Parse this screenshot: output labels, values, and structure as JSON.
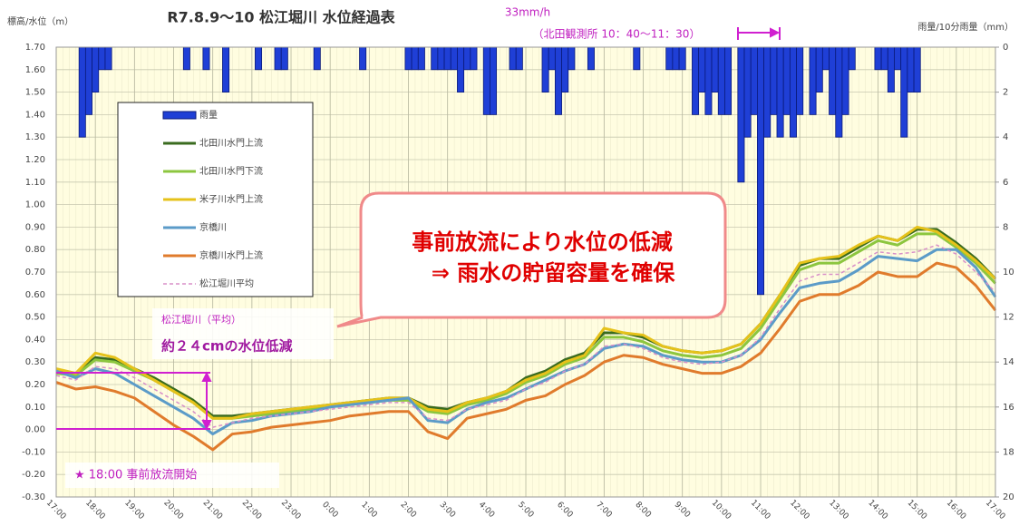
{
  "chart_data": {
    "type": "bar_line",
    "title": "R7.8.9～10 松江堀川 水位経過表",
    "y_label": "標高/水位（m）",
    "y2_label": "雨量/10分雨量（mm）",
    "annotations": {
      "rain_peak": "33mm/h",
      "rain_period": "（北田観測所 10：40～11：30）",
      "callout_line1": "事前放流により水位の低減",
      "callout_line2": "⇒ 雨水の貯留容量を確保",
      "avg_label": "松江堀川（平均）",
      "reduction": "約２４cmの水位低減",
      "start": "★ 18:00 事前放流開始"
    },
    "xlim": [
      0,
      1440
    ],
    "xticks": [
      {
        "value": 0,
        "label": "17:00"
      },
      {
        "value": 60,
        "label": "18:00"
      },
      {
        "value": 120,
        "label": "19:00"
      },
      {
        "value": 180,
        "label": "20:00"
      },
      {
        "value": 240,
        "label": "21:00"
      },
      {
        "value": 300,
        "label": "22:00"
      },
      {
        "value": 360,
        "label": "23:00"
      },
      {
        "value": 420,
        "label": "0:00"
      },
      {
        "value": 480,
        "label": "1:00"
      },
      {
        "value": 540,
        "label": "2:00"
      },
      {
        "value": 600,
        "label": "3:00"
      },
      {
        "value": 660,
        "label": "4:00"
      },
      {
        "value": 720,
        "label": "5:00"
      },
      {
        "value": 780,
        "label": "6:00"
      },
      {
        "value": 840,
        "label": "7:00"
      },
      {
        "value": 900,
        "label": "8:00"
      },
      {
        "value": 960,
        "label": "9:00"
      },
      {
        "value": 1020,
        "label": "10:00"
      },
      {
        "value": 1080,
        "label": "11:00"
      },
      {
        "value": 1140,
        "label": "12:00"
      },
      {
        "value": 1200,
        "label": "13:00"
      },
      {
        "value": 1260,
        "label": "14:00"
      },
      {
        "value": 1320,
        "label": "15:00"
      },
      {
        "value": 1380,
        "label": "16:00"
      },
      {
        "value": 1440,
        "label": "17:00"
      }
    ],
    "ylim": [
      -0.3,
      1.7
    ],
    "yticks": [
      {
        "value": -0.3,
        "label": "-0.30"
      },
      {
        "value": -0.2,
        "label": "-0.20"
      },
      {
        "value": -0.1,
        "label": "-0.10"
      },
      {
        "value": 0,
        "label": "0.00"
      },
      {
        "value": 0.1,
        "label": "0.10"
      },
      {
        "value": 0.2,
        "label": "0.20"
      },
      {
        "value": 0.3,
        "label": "0.30"
      },
      {
        "value": 0.4,
        "label": "0.40"
      },
      {
        "value": 0.5,
        "label": "0.50"
      },
      {
        "value": 0.6,
        "label": "0.60"
      },
      {
        "value": 0.7,
        "label": "0.70"
      },
      {
        "value": 0.8,
        "label": "0.80"
      },
      {
        "value": 0.9,
        "label": "0.90"
      },
      {
        "value": 1.0,
        "label": "1.00"
      },
      {
        "value": 1.1,
        "label": "1.10"
      },
      {
        "value": 1.2,
        "label": "1.20"
      },
      {
        "value": 1.3,
        "label": "1.30"
      },
      {
        "value": 1.4,
        "label": "1.40"
      },
      {
        "value": 1.5,
        "label": "1.50"
      },
      {
        "value": 1.6,
        "label": "1.60"
      },
      {
        "value": 1.7,
        "label": "1.70"
      }
    ],
    "y2lim": [
      20,
      0
    ],
    "y2ticks": [
      0,
      2,
      4,
      6,
      8,
      10,
      12,
      14,
      16,
      18,
      20
    ],
    "grid": true,
    "x": [
      0,
      30,
      60,
      90,
      120,
      150,
      180,
      210,
      240,
      270,
      300,
      330,
      360,
      390,
      420,
      450,
      480,
      510,
      540,
      570,
      600,
      630,
      660,
      690,
      720,
      750,
      780,
      810,
      840,
      870,
      900,
      930,
      960,
      990,
      1020,
      1050,
      1080,
      1110,
      1140,
      1170,
      1200,
      1230,
      1260,
      1290,
      1320,
      1350,
      1380,
      1410,
      1440
    ],
    "series": [
      {
        "name": "雨量",
        "type": "bar",
        "axis": "y2",
        "color": "#1f3fd6",
        "x": [
          40,
          50,
          60,
          70,
          80,
          200,
          230,
          260,
          310,
          340,
          350,
          400,
          470,
          540,
          550,
          560,
          580,
          590,
          600,
          610,
          620,
          630,
          640,
          660,
          670,
          700,
          710,
          750,
          760,
          770,
          780,
          790,
          820,
          890,
          940,
          950,
          960,
          980,
          990,
          1000,
          1010,
          1020,
          1030,
          1050,
          1060,
          1070,
          1080,
          1090,
          1100,
          1110,
          1120,
          1130,
          1140,
          1160,
          1170,
          1180,
          1190,
          1200,
          1210,
          1220,
          1260,
          1270,
          1280,
          1290,
          1300,
          1310,
          1320
        ],
        "values": [
          4,
          3,
          2,
          1,
          1,
          1,
          1,
          2,
          1,
          1,
          1,
          1,
          1,
          1,
          1,
          1,
          1,
          1,
          1,
          1,
          2,
          1,
          1,
          3,
          3,
          1,
          1,
          2,
          1,
          3,
          2,
          1,
          1,
          1,
          1,
          1,
          1,
          3,
          2,
          3,
          2,
          3,
          3,
          6,
          4,
          3,
          11,
          4,
          3,
          4,
          3,
          4,
          3,
          3,
          2,
          1,
          3,
          4,
          3,
          1,
          1,
          1,
          2,
          1,
          4,
          2,
          2
        ]
      },
      {
        "name": "北田川水門上流",
        "type": "line",
        "color": "#3a6b1f",
        "values": [
          0.26,
          0.25,
          0.32,
          0.31,
          0.27,
          0.23,
          0.18,
          0.13,
          0.06,
          0.06,
          0.07,
          0.08,
          0.09,
          0.1,
          0.11,
          0.12,
          0.13,
          0.14,
          0.14,
          0.1,
          0.09,
          0.12,
          0.14,
          0.17,
          0.23,
          0.26,
          0.31,
          0.34,
          0.43,
          0.43,
          0.41,
          0.37,
          0.35,
          0.34,
          0.35,
          0.38,
          0.47,
          0.6,
          0.73,
          0.76,
          0.76,
          0.81,
          0.86,
          0.84,
          0.89,
          0.89,
          0.83,
          0.76,
          0.67
        ]
      },
      {
        "name": "北田川水門下流",
        "type": "line",
        "color": "#8cc63f",
        "values": [
          0.25,
          0.24,
          0.31,
          0.3,
          0.26,
          0.22,
          0.17,
          0.12,
          0.05,
          0.05,
          0.06,
          0.07,
          0.08,
          0.09,
          0.1,
          0.11,
          0.12,
          0.13,
          0.13,
          0.08,
          0.07,
          0.11,
          0.13,
          0.16,
          0.21,
          0.24,
          0.29,
          0.32,
          0.41,
          0.41,
          0.39,
          0.35,
          0.33,
          0.32,
          0.33,
          0.36,
          0.45,
          0.58,
          0.71,
          0.74,
          0.74,
          0.79,
          0.84,
          0.82,
          0.87,
          0.87,
          0.81,
          0.74,
          0.65
        ]
      },
      {
        "name": "米子川水門上流",
        "type": "line",
        "color": "#e6c21a",
        "values": [
          0.27,
          0.25,
          0.34,
          0.32,
          0.27,
          0.22,
          0.17,
          0.12,
          0.05,
          0.05,
          0.07,
          0.08,
          0.09,
          0.1,
          0.11,
          0.12,
          0.13,
          0.14,
          0.14,
          0.09,
          0.08,
          0.12,
          0.14,
          0.17,
          0.22,
          0.25,
          0.3,
          0.33,
          0.45,
          0.43,
          0.42,
          0.37,
          0.35,
          0.34,
          0.35,
          0.38,
          0.47,
          0.6,
          0.74,
          0.76,
          0.77,
          0.82,
          0.86,
          0.84,
          0.9,
          0.88,
          0.82,
          0.75,
          0.67
        ]
      },
      {
        "name": "京橋川",
        "type": "line",
        "color": "#5b9bc8",
        "values": [
          0.26,
          0.23,
          0.27,
          0.25,
          0.2,
          0.15,
          0.1,
          0.05,
          -0.02,
          0.03,
          0.04,
          0.06,
          0.07,
          0.08,
          0.1,
          0.11,
          0.12,
          0.13,
          0.14,
          0.04,
          0.03,
          0.09,
          0.12,
          0.14,
          0.18,
          0.22,
          0.26,
          0.29,
          0.36,
          0.38,
          0.37,
          0.33,
          0.31,
          0.3,
          0.3,
          0.33,
          0.4,
          0.52,
          0.63,
          0.65,
          0.66,
          0.71,
          0.77,
          0.76,
          0.75,
          0.8,
          0.8,
          0.72,
          0.59
        ]
      },
      {
        "name": "京橋川水門上流",
        "type": "line",
        "color": "#e07b2c",
        "values": [
          0.21,
          0.18,
          0.19,
          0.17,
          0.14,
          0.08,
          0.02,
          -0.03,
          -0.09,
          -0.02,
          -0.01,
          0.01,
          0.02,
          0.03,
          0.04,
          0.06,
          0.07,
          0.08,
          0.08,
          -0.01,
          -0.04,
          0.05,
          0.07,
          0.09,
          0.13,
          0.15,
          0.2,
          0.24,
          0.3,
          0.33,
          0.32,
          0.29,
          0.27,
          0.25,
          0.25,
          0.28,
          0.34,
          0.45,
          0.57,
          0.6,
          0.6,
          0.64,
          0.7,
          0.68,
          0.68,
          0.74,
          0.72,
          0.64,
          0.53
        ]
      },
      {
        "name": "松江堀川平均",
        "type": "line",
        "dash": true,
        "color": "#d88fc8",
        "values": [
          0.24,
          0.22,
          0.28,
          0.27,
          0.23,
          0.18,
          0.13,
          0.08,
          0.01,
          0.03,
          0.05,
          0.06,
          0.07,
          0.08,
          0.09,
          0.1,
          0.11,
          0.12,
          0.12,
          0.05,
          0.04,
          0.09,
          0.11,
          0.13,
          0.18,
          0.21,
          0.26,
          0.29,
          0.37,
          0.38,
          0.36,
          0.32,
          0.3,
          0.29,
          0.3,
          0.33,
          0.41,
          0.54,
          0.66,
          0.69,
          0.69,
          0.74,
          0.79,
          0.78,
          0.79,
          0.82,
          0.78,
          0.7,
          0.61
        ]
      }
    ]
  }
}
